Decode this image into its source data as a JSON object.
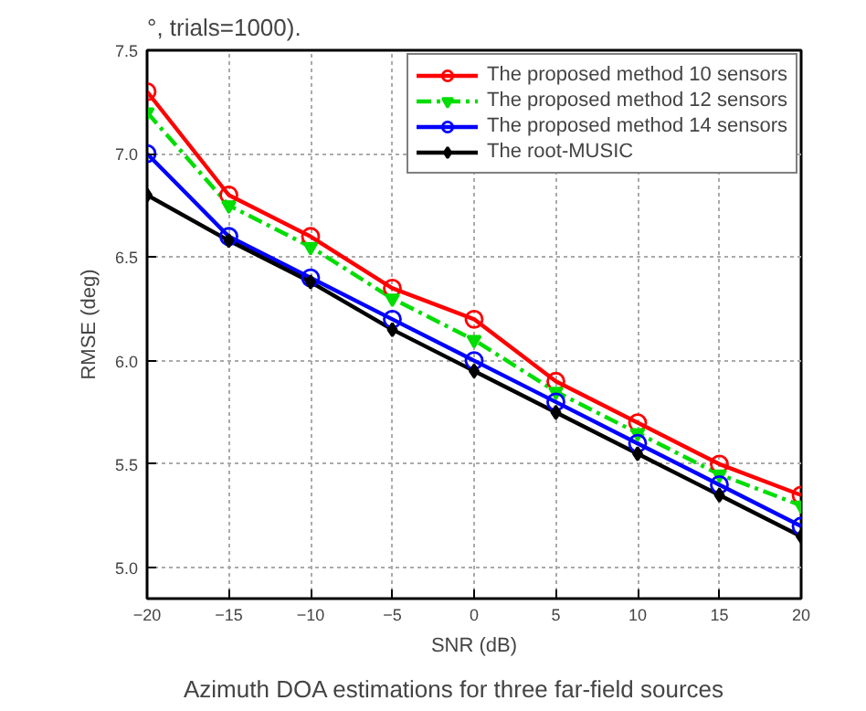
{
  "chart_data": {
    "type": "line",
    "xlabel": "SNR (dB)",
    "ylabel": "RMSE (deg)",
    "x": [
      -20,
      -15,
      -10,
      -5,
      0,
      5,
      10,
      15,
      20
    ],
    "xlim": [
      -20,
      20
    ],
    "xticks": [
      -20,
      -15,
      -10,
      -5,
      0,
      5,
      10,
      15,
      20
    ],
    "ylim": [
      4.85,
      7.5
    ],
    "yticks": [
      {
        "value": 5.0,
        "label": "5.0"
      },
      {
        "value": 5.5,
        "label": "5.5"
      },
      {
        "value": 6.0,
        "label": "6.0"
      },
      {
        "value": 6.5,
        "label": "6.5"
      },
      {
        "value": 7.0,
        "label": "7.0"
      },
      {
        "value": 7.5,
        "label": "7.5"
      }
    ],
    "grid": true,
    "legend": "top right",
    "annotations": [
      "°, trials=1000).",
      "Azimuth DOA estimations for three far-field sources"
    ],
    "series": [
      {
        "name": "The proposed method 10 sensors",
        "color": "#ff0000",
        "marker": "circle",
        "line_style": "solid",
        "values": [
          7.3,
          6.8,
          6.6,
          6.35,
          6.2,
          5.9,
          5.7,
          5.5,
          5.35
        ]
      },
      {
        "name": "The proposed method 12 sensors",
        "color": "#00dd00",
        "marker": "triangle",
        "line_style": "dashed",
        "values": [
          7.2,
          6.75,
          6.55,
          6.3,
          6.1,
          5.85,
          5.65,
          5.45,
          5.3
        ]
      },
      {
        "name": "The proposed method 14 sensors",
        "color": "#0000ff",
        "marker": "circle",
        "line_style": "solid",
        "values": [
          7.0,
          6.6,
          6.4,
          6.2,
          6.0,
          5.8,
          5.6,
          5.4,
          5.2
        ]
      },
      {
        "name": "The root-MUSIC",
        "color": "#000000",
        "marker": "diamond",
        "line_style": "solid",
        "values": [
          6.8,
          6.58,
          6.38,
          6.15,
          5.95,
          5.75,
          5.55,
          5.35,
          5.15
        ]
      }
    ]
  }
}
